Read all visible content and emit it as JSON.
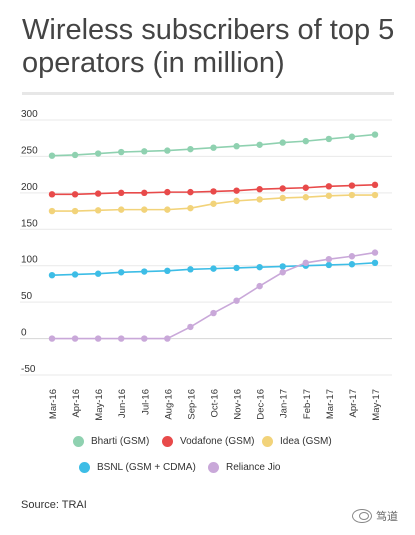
{
  "title": "Wireless subscribers of top 5 operators (in million)",
  "source": "Source: TRAI",
  "watermark": "笃道",
  "chart_data": {
    "type": "line",
    "title": "Wireless subscribers of top 5 operators (in million)",
    "xlabel": "",
    "ylabel": "",
    "ylim": [
      -50,
      300
    ],
    "yticks": [
      300,
      250,
      200,
      150,
      100,
      50,
      0,
      -50
    ],
    "grid": true,
    "legend_position": "bottom",
    "categories": [
      "Mar-16",
      "Apr-16",
      "May-16",
      "Jun-16",
      "Jul-16",
      "Aug-16",
      "Sep-16",
      "Oct-16",
      "Nov-16",
      "Dec-16",
      "Jan-17",
      "Feb-17",
      "Mar-17",
      "Apr-17",
      "May-17"
    ],
    "series": [
      {
        "name": "Bharti (GSM)",
        "color": "#8fd1b0",
        "values": [
          251,
          252,
          254,
          256,
          257,
          258,
          260,
          262,
          264,
          266,
          269,
          271,
          274,
          277,
          280
        ]
      },
      {
        "name": "Vodafone (GSM)",
        "color": "#e84a4a",
        "values": [
          198,
          198,
          199,
          200,
          200,
          201,
          201,
          202,
          203,
          205,
          206,
          207,
          209,
          210,
          211
        ]
      },
      {
        "name": "Idea (GSM)",
        "color": "#f2d37a",
        "values": [
          175,
          175,
          176,
          177,
          177,
          177,
          179,
          185,
          189,
          191,
          193,
          194,
          196,
          197,
          197
        ]
      },
      {
        "name": "BSNL (GSM + CDMA)",
        "color": "#3dbde6",
        "values": [
          87,
          88,
          89,
          91,
          92,
          93,
          95,
          96,
          97,
          98,
          99,
          100,
          101,
          102,
          104
        ]
      },
      {
        "name": "Reliance Jio",
        "color": "#c9a8d9",
        "values": [
          0,
          0,
          0,
          0,
          0,
          0,
          16,
          35,
          52,
          72,
          91,
          104,
          109,
          113,
          118
        ]
      }
    ]
  }
}
